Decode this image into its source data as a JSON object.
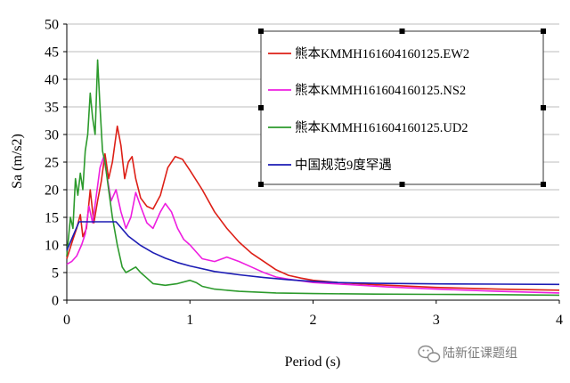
{
  "chart_data": {
    "type": "line",
    "xlabel": "Period (s)",
    "ylabel": "Sa (m/s2)",
    "xlim": [
      0,
      4
    ],
    "ylim": [
      0,
      50
    ],
    "x_ticks": [
      0,
      1,
      2,
      3,
      4
    ],
    "y_ticks": [
      0,
      5,
      10,
      15,
      20,
      25,
      30,
      35,
      40,
      45,
      50
    ],
    "grid": "horizontal",
    "legend_position": "top-right",
    "series": [
      {
        "name": "熊本KMMH161604160125.EW2",
        "color": "#dd1f16",
        "points": [
          [
            0,
            7.5
          ],
          [
            0.05,
            11
          ],
          [
            0.08,
            13
          ],
          [
            0.11,
            15.5
          ],
          [
            0.13,
            11.5
          ],
          [
            0.16,
            13
          ],
          [
            0.19,
            20
          ],
          [
            0.22,
            14
          ],
          [
            0.25,
            18
          ],
          [
            0.28,
            21.5
          ],
          [
            0.31,
            26.5
          ],
          [
            0.34,
            22
          ],
          [
            0.37,
            25
          ],
          [
            0.41,
            31.5
          ],
          [
            0.44,
            28
          ],
          [
            0.47,
            22
          ],
          [
            0.5,
            25
          ],
          [
            0.53,
            26
          ],
          [
            0.56,
            22
          ],
          [
            0.6,
            18.5
          ],
          [
            0.65,
            17
          ],
          [
            0.7,
            16.5
          ],
          [
            0.76,
            19
          ],
          [
            0.82,
            24
          ],
          [
            0.88,
            26
          ],
          [
            0.94,
            25.5
          ],
          [
            1.0,
            23.5
          ],
          [
            1.1,
            20
          ],
          [
            1.2,
            16
          ],
          [
            1.3,
            13
          ],
          [
            1.4,
            10.5
          ],
          [
            1.5,
            8.5
          ],
          [
            1.6,
            7
          ],
          [
            1.7,
            5.5
          ],
          [
            1.8,
            4.5
          ],
          [
            1.9,
            4
          ],
          [
            2.0,
            3.6
          ],
          [
            2.2,
            3.2
          ],
          [
            2.5,
            2.8
          ],
          [
            3.0,
            2.3
          ],
          [
            3.5,
            2.0
          ],
          [
            4.0,
            1.8
          ]
        ]
      },
      {
        "name": "熊本KMMH161604160125.NS2",
        "color": "#ee1ee0",
        "points": [
          [
            0,
            6.5
          ],
          [
            0.04,
            7
          ],
          [
            0.08,
            8
          ],
          [
            0.12,
            10
          ],
          [
            0.15,
            12
          ],
          [
            0.18,
            17
          ],
          [
            0.21,
            14
          ],
          [
            0.24,
            19
          ],
          [
            0.27,
            24
          ],
          [
            0.3,
            26
          ],
          [
            0.33,
            22
          ],
          [
            0.36,
            18
          ],
          [
            0.4,
            20
          ],
          [
            0.44,
            16
          ],
          [
            0.48,
            13
          ],
          [
            0.52,
            15
          ],
          [
            0.56,
            19.5
          ],
          [
            0.6,
            17
          ],
          [
            0.65,
            14
          ],
          [
            0.7,
            13
          ],
          [
            0.76,
            16
          ],
          [
            0.8,
            17.5
          ],
          [
            0.85,
            16
          ],
          [
            0.9,
            13
          ],
          [
            0.95,
            11
          ],
          [
            1.0,
            10
          ],
          [
            1.1,
            7.5
          ],
          [
            1.2,
            7
          ],
          [
            1.3,
            7.8
          ],
          [
            1.4,
            7
          ],
          [
            1.5,
            6
          ],
          [
            1.6,
            5
          ],
          [
            1.7,
            4.2
          ],
          [
            1.8,
            3.8
          ],
          [
            2.0,
            3.2
          ],
          [
            2.3,
            2.8
          ],
          [
            2.6,
            2.4
          ],
          [
            3.0,
            2.0
          ],
          [
            3.5,
            1.6
          ],
          [
            4.0,
            1.3
          ]
        ]
      },
      {
        "name": "熊本KMMH161604160125.UD2",
        "color": "#2c9a2c",
        "points": [
          [
            0,
            8
          ],
          [
            0.03,
            15
          ],
          [
            0.05,
            13
          ],
          [
            0.07,
            22
          ],
          [
            0.09,
            19
          ],
          [
            0.11,
            23
          ],
          [
            0.13,
            20
          ],
          [
            0.15,
            27
          ],
          [
            0.17,
            30
          ],
          [
            0.19,
            37.5
          ],
          [
            0.21,
            33
          ],
          [
            0.23,
            30
          ],
          [
            0.25,
            43.5
          ],
          [
            0.27,
            35
          ],
          [
            0.29,
            27
          ],
          [
            0.31,
            25
          ],
          [
            0.34,
            20
          ],
          [
            0.37,
            15
          ],
          [
            0.41,
            10
          ],
          [
            0.45,
            6
          ],
          [
            0.48,
            5
          ],
          [
            0.52,
            5.5
          ],
          [
            0.56,
            6
          ],
          [
            0.6,
            5
          ],
          [
            0.65,
            4
          ],
          [
            0.7,
            3
          ],
          [
            0.8,
            2.7
          ],
          [
            0.9,
            3
          ],
          [
            1.0,
            3.6
          ],
          [
            1.05,
            3.2
          ],
          [
            1.1,
            2.5
          ],
          [
            1.2,
            2
          ],
          [
            1.4,
            1.6
          ],
          [
            1.7,
            1.3
          ],
          [
            2.0,
            1.2
          ],
          [
            2.5,
            1.1
          ],
          [
            3.0,
            1.05
          ],
          [
            3.5,
            1.0
          ],
          [
            4.0,
            0.9
          ]
        ]
      },
      {
        "name": "中国规范9度罕遇",
        "color": "#1c1cb4",
        "points": [
          [
            0,
            9
          ],
          [
            0.1,
            14.2
          ],
          [
            0.4,
            14.2
          ],
          [
            0.5,
            11.6
          ],
          [
            0.6,
            9.9
          ],
          [
            0.7,
            8.6
          ],
          [
            0.8,
            7.6
          ],
          [
            0.9,
            6.8
          ],
          [
            1.0,
            6.2
          ],
          [
            1.2,
            5.2
          ],
          [
            1.4,
            4.6
          ],
          [
            1.6,
            4.1
          ],
          [
            1.8,
            3.7
          ],
          [
            2.0,
            3.4
          ],
          [
            2.2,
            3.2
          ],
          [
            2.5,
            3.05
          ],
          [
            3.0,
            2.95
          ],
          [
            3.5,
            2.9
          ],
          [
            4.0,
            2.85
          ]
        ]
      }
    ]
  },
  "watermark": {
    "text": "陆新征课题组",
    "icon": "wechat-icon"
  }
}
